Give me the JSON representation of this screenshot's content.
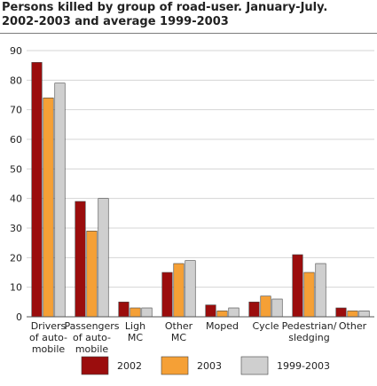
{
  "title_lines": [
    "Persons killed by group of road-user. January-July.",
    "2002-2003 and average 1999-2003"
  ],
  "chart_data": {
    "type": "bar",
    "categories": [
      [
        "Drivers",
        "of auto-",
        "mobile"
      ],
      [
        "Passengers",
        "of auto-",
        "mobile"
      ],
      [
        "Ligh",
        "MC"
      ],
      [
        "Other",
        "MC"
      ],
      [
        "Moped"
      ],
      [
        "Cycle"
      ],
      [
        "Pedestrian/",
        "sledging"
      ],
      [
        "Other"
      ]
    ],
    "series": [
      {
        "name": "2002",
        "color": "#9b0d0d",
        "values": [
          86,
          39,
          5,
          15,
          4,
          5,
          21,
          3
        ]
      },
      {
        "name": "2003",
        "color": "#f5a036",
        "values": [
          74,
          29,
          3,
          18,
          2,
          7,
          15,
          2
        ]
      },
      {
        "name": "1999-2003",
        "color": "#cfcfcf",
        "values": [
          79,
          40,
          3,
          19,
          3,
          6,
          18,
          2
        ]
      }
    ],
    "ylim": [
      0,
      90
    ],
    "yticks": [
      0,
      10,
      20,
      30,
      40,
      50,
      60,
      70,
      80,
      90
    ],
    "grid": true,
    "legend": "bottom"
  }
}
